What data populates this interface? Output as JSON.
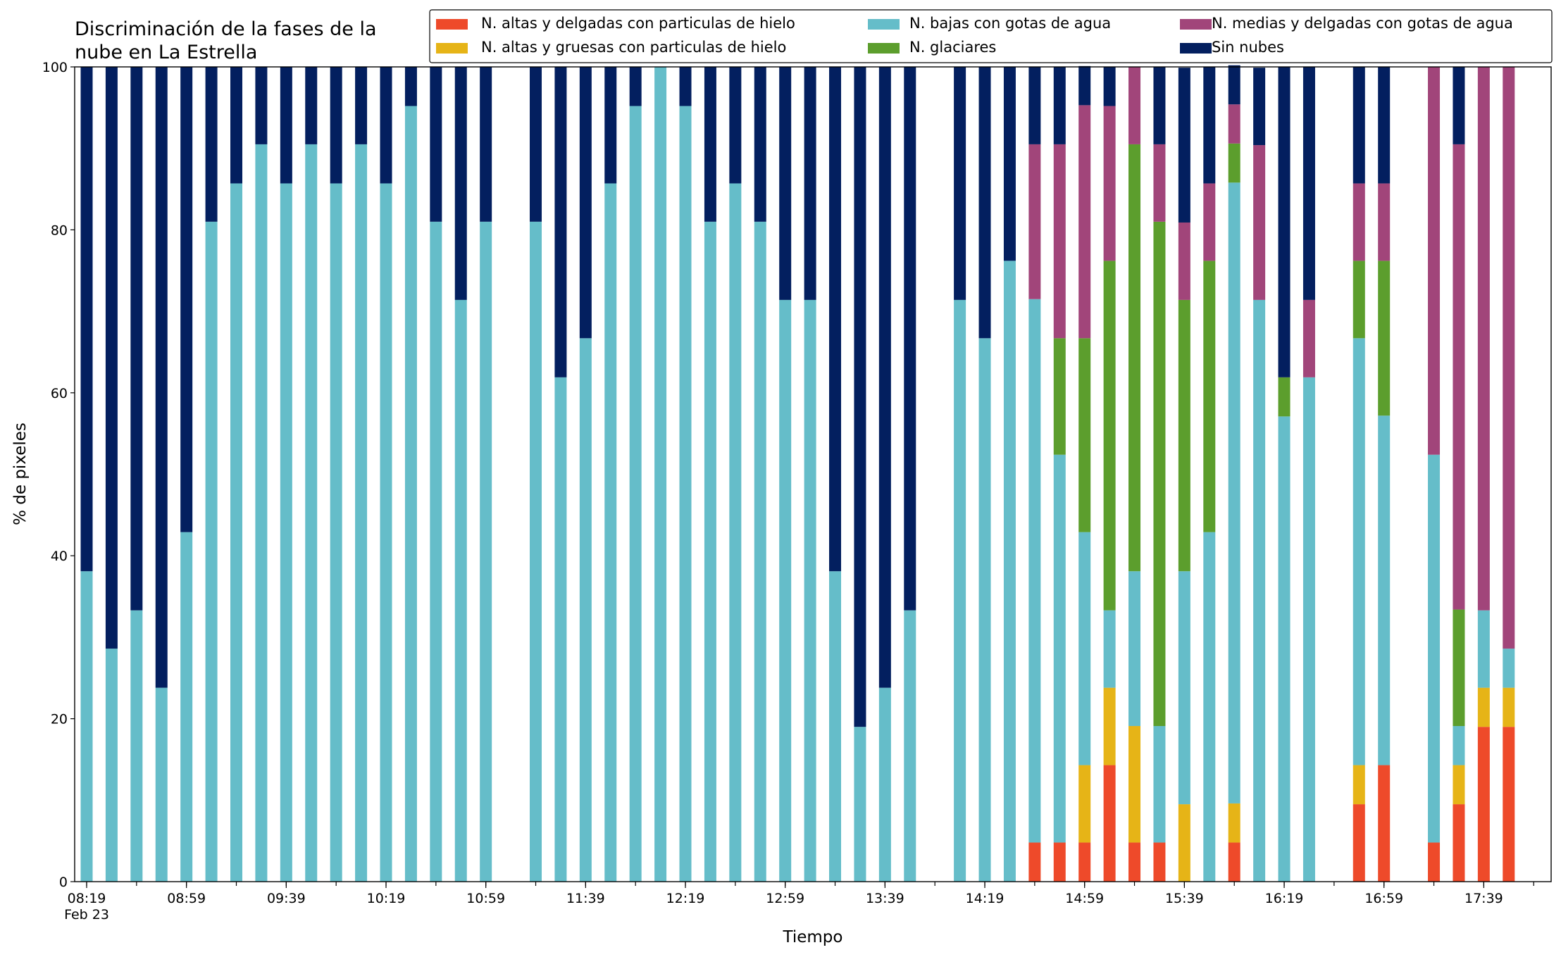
{
  "chart_data": {
    "type": "stacked_bar",
    "title": "Discriminación de la fases de la\nnube en La Estrella",
    "xlabel": "Tiempo",
    "ylabel": "% de pixeles",
    "date_label": "Feb 23",
    "categories": [
      "08:19",
      "08:29",
      "08:39",
      "08:49",
      "08:59",
      "09:09",
      "09:19",
      "09:29",
      "09:39",
      "09:49",
      "09:59",
      "10:09",
      "10:19",
      "10:29",
      "10:39",
      "10:49",
      "10:59",
      "11:09",
      "11:19",
      "11:29",
      "11:39",
      "11:49",
      "11:59",
      "12:09",
      "12:19",
      "12:29",
      "12:39",
      "12:49",
      "12:59",
      "13:09",
      "13:19",
      "13:29",
      "13:39",
      "13:49",
      "13:59",
      "14:09",
      "14:19",
      "14:29",
      "14:39",
      "14:49",
      "14:59",
      "15:09",
      "15:19",
      "15:29",
      "15:39",
      "15:49",
      "15:59",
      "16:09",
      "16:19",
      "16:29",
      "16:39",
      "16:49",
      "16:59",
      "17:09",
      "17:19",
      "17:29",
      "17:39",
      "17:49",
      "17:59"
    ],
    "xticks": [
      "08:19",
      "08:59",
      "09:39",
      "10:19",
      "10:59",
      "11:39",
      "12:19",
      "12:59",
      "13:39",
      "14:19",
      "14:59",
      "15:39",
      "16:19",
      "16:59",
      "17:39"
    ],
    "ylim": [
      0,
      100
    ],
    "yticks": [
      0,
      20,
      40,
      60,
      80,
      100
    ],
    "grid": false,
    "legend": "top",
    "series": [
      {
        "name": "N. altas y delgadas con particulas de hielo",
        "color": "#ee4a2a",
        "values": [
          0,
          0,
          0,
          0,
          0,
          0,
          0,
          0,
          0,
          0,
          0,
          0,
          0,
          0,
          0,
          0,
          0,
          null,
          0,
          0,
          0,
          0,
          0,
          0,
          0,
          0,
          0,
          0,
          0,
          0,
          0,
          0,
          0,
          0,
          null,
          0,
          0,
          0,
          4.8,
          4.8,
          4.8,
          14.3,
          4.8,
          4.8,
          0,
          0,
          4.8,
          0,
          0,
          0,
          null,
          9.5,
          14.3,
          null,
          4.8,
          9.5,
          19.0,
          19.0,
          null
        ]
      },
      {
        "name": "N. altas y gruesas con particulas de hielo",
        "color": "#e6b417",
        "values": [
          0,
          0,
          0,
          0,
          0,
          0,
          0,
          0,
          0,
          0,
          0,
          0,
          0,
          0,
          0,
          0,
          0,
          null,
          0,
          0,
          0,
          0,
          0,
          0,
          0,
          0,
          0,
          0,
          0,
          0,
          0,
          0,
          0,
          0,
          null,
          0,
          0,
          0,
          0,
          0,
          9.5,
          9.5,
          14.3,
          0,
          9.5,
          0,
          4.8,
          0,
          0,
          0,
          null,
          4.8,
          0,
          null,
          0,
          4.8,
          4.8,
          4.8,
          null
        ]
      },
      {
        "name": "N. bajas con gotas de agua",
        "color": "#65bdc9",
        "values": [
          38.1,
          28.6,
          33.3,
          23.8,
          42.9,
          81.0,
          85.7,
          90.5,
          85.7,
          90.5,
          85.7,
          90.5,
          85.7,
          95.2,
          81.0,
          71.4,
          81.0,
          null,
          81.0,
          61.9,
          66.7,
          85.7,
          95.2,
          100,
          95.2,
          81.0,
          85.7,
          81.0,
          71.4,
          71.4,
          38.1,
          19.0,
          23.8,
          33.3,
          null,
          71.4,
          66.7,
          76.2,
          66.7,
          47.6,
          28.6,
          9.5,
          19.0,
          14.3,
          28.6,
          42.9,
          76.2,
          71.4,
          57.1,
          61.9,
          null,
          52.4,
          42.9,
          null,
          47.6,
          4.8,
          9.5,
          4.8,
          null
        ]
      },
      {
        "name": "N. glaciares",
        "color": "#5c9e2d",
        "values": [
          0,
          0,
          0,
          0,
          0,
          0,
          0,
          0,
          0,
          0,
          0,
          0,
          0,
          0,
          0,
          0,
          0,
          null,
          0,
          0,
          0,
          0,
          0,
          0,
          0,
          0,
          0,
          0,
          0,
          0,
          0,
          0,
          0,
          0,
          null,
          0,
          0,
          0,
          0,
          14.3,
          23.8,
          42.9,
          52.4,
          61.9,
          33.3,
          33.3,
          4.8,
          0,
          4.8,
          0,
          null,
          9.5,
          19.0,
          null,
          0,
          14.3,
          0,
          0,
          null
        ]
      },
      {
        "name": "N. medias y delgadas con gotas de agua",
        "color": "#a1457a",
        "values": [
          0,
          0,
          0,
          0,
          0,
          0,
          0,
          0,
          0,
          0,
          0,
          0,
          0,
          0,
          0,
          0,
          0,
          null,
          0,
          0,
          0,
          0,
          0,
          0,
          0,
          0,
          0,
          0,
          0,
          0,
          0,
          0,
          0,
          0,
          null,
          0,
          0,
          0,
          19.0,
          23.8,
          28.6,
          19.0,
          9.5,
          9.5,
          9.5,
          9.5,
          4.8,
          19.0,
          0,
          9.5,
          null,
          9.5,
          9.5,
          null,
          47.6,
          57.1,
          66.7,
          71.4,
          null
        ]
      },
      {
        "name": "Sin nubes",
        "color": "#031f5f",
        "values": [
          61.9,
          71.4,
          66.7,
          76.2,
          57.1,
          19.0,
          14.3,
          9.5,
          14.3,
          9.5,
          14.3,
          9.5,
          14.3,
          4.8,
          19.0,
          28.6,
          19.0,
          null,
          19.0,
          38.1,
          33.3,
          14.3,
          4.8,
          0,
          4.8,
          19.0,
          14.3,
          19.0,
          28.6,
          28.6,
          61.9,
          81.0,
          76.2,
          66.7,
          null,
          28.6,
          33.3,
          23.8,
          9.5,
          9.5,
          4.8,
          4.8,
          0,
          9.5,
          19.0,
          14.3,
          4.8,
          9.5,
          38.1,
          28.6,
          null,
          14.3,
          14.3,
          null,
          0,
          9.5,
          0,
          0,
          null
        ]
      }
    ]
  }
}
